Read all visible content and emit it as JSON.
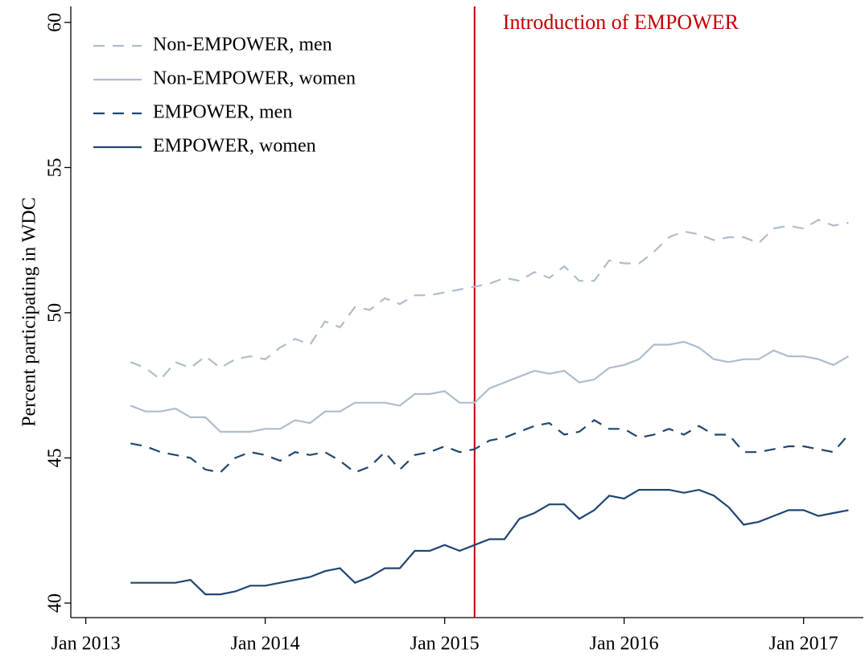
{
  "chart_data": {
    "type": "line",
    "y_label": "Percent participating in WDC",
    "x": [
      "2013-04",
      "2013-05",
      "2013-06",
      "2013-07",
      "2013-08",
      "2013-09",
      "2013-10",
      "2013-11",
      "2013-12",
      "2014-01",
      "2014-02",
      "2014-03",
      "2014-04",
      "2014-05",
      "2014-06",
      "2014-07",
      "2014-08",
      "2014-09",
      "2014-10",
      "2014-11",
      "2014-12",
      "2015-01",
      "2015-02",
      "2015-03",
      "2015-04",
      "2015-05",
      "2015-06",
      "2015-07",
      "2015-08",
      "2015-09",
      "2015-10",
      "2015-11",
      "2015-12",
      "2016-01",
      "2016-02",
      "2016-03",
      "2016-04",
      "2016-05",
      "2016-06",
      "2016-07",
      "2016-08",
      "2016-09",
      "2016-10",
      "2016-11",
      "2016-12",
      "2017-01",
      "2017-02",
      "2017-03",
      "2017-04"
    ],
    "series": [
      {
        "name": "Non-EMPOWER, men",
        "color": "#aebdcc",
        "style": "dashed",
        "values": [
          48.3,
          48.1,
          47.7,
          48.3,
          48.1,
          48.5,
          48.1,
          48.4,
          48.5,
          48.4,
          48.8,
          49.1,
          48.9,
          49.7,
          49.5,
          50.2,
          50.1,
          50.5,
          50.3,
          50.6,
          50.6,
          50.7,
          50.8,
          50.9,
          51.0,
          51.2,
          51.1,
          51.4,
          51.2,
          51.6,
          51.1,
          51.1,
          51.8,
          51.7,
          51.7,
          52.1,
          52.6,
          52.8,
          52.7,
          52.5,
          52.6,
          52.6,
          52.4,
          52.9,
          53.0,
          52.9,
          53.2,
          53.0,
          53.1
        ]
      },
      {
        "name": "Non-EMPOWER, women",
        "color": "#aebdcc",
        "style": "solid",
        "values": [
          46.8,
          46.6,
          46.6,
          46.7,
          46.4,
          46.4,
          45.9,
          45.9,
          45.9,
          46.0,
          46.0,
          46.3,
          46.2,
          46.6,
          46.6,
          46.9,
          46.9,
          46.9,
          46.8,
          47.2,
          47.2,
          47.3,
          46.9,
          46.9,
          47.4,
          47.6,
          47.8,
          48.0,
          47.9,
          48.0,
          47.6,
          47.7,
          48.1,
          48.2,
          48.4,
          48.9,
          48.9,
          49.0,
          48.8,
          48.4,
          48.3,
          48.4,
          48.4,
          48.7,
          48.5,
          48.5,
          48.4,
          48.2,
          48.5
        ]
      },
      {
        "name": "EMPOWER, men",
        "color": "#1f4670",
        "style": "dashed",
        "values": [
          45.5,
          45.4,
          45.2,
          45.1,
          45.0,
          44.6,
          44.5,
          45.0,
          45.2,
          45.1,
          44.9,
          45.2,
          45.1,
          45.2,
          44.9,
          44.5,
          44.7,
          45.2,
          44.6,
          45.1,
          45.2,
          45.4,
          45.2,
          45.3,
          45.6,
          45.7,
          45.9,
          46.1,
          46.2,
          45.8,
          45.9,
          46.3,
          46.0,
          46.0,
          45.7,
          45.8,
          46.0,
          45.8,
          46.1,
          45.8,
          45.8,
          45.2,
          45.2,
          45.3,
          45.4,
          45.4,
          45.3,
          45.2,
          45.8
        ]
      },
      {
        "name": "EMPOWER, women",
        "color": "#1f4670",
        "style": "solid",
        "values": [
          40.7,
          40.7,
          40.7,
          40.7,
          40.8,
          40.3,
          40.3,
          40.4,
          40.6,
          40.6,
          40.7,
          40.8,
          40.9,
          41.1,
          41.2,
          40.7,
          40.9,
          41.2,
          41.2,
          41.8,
          41.8,
          42.0,
          41.8,
          42.0,
          42.2,
          42.2,
          42.9,
          43.1,
          43.4,
          43.4,
          42.9,
          43.2,
          43.7,
          43.6,
          43.9,
          43.9,
          43.9,
          43.8,
          43.9,
          43.7,
          43.3,
          42.7,
          42.8,
          43.0,
          43.2,
          43.2,
          43.0,
          43.1,
          43.2
        ]
      }
    ],
    "xlim": [
      "2012-12",
      "2017-05"
    ],
    "xticks": [
      {
        "value": "2013-01",
        "label": "Jan 2013"
      },
      {
        "value": "2014-01",
        "label": "Jan 2014"
      },
      {
        "value": "2015-01",
        "label": "Jan 2015"
      },
      {
        "value": "2016-01",
        "label": "Jan 2016"
      },
      {
        "value": "2017-01",
        "label": "Jan 2017"
      }
    ],
    "ylim": [
      39.5,
      60.55
    ],
    "yticks": [
      40,
      45,
      50,
      55,
      60
    ],
    "legend": "top-left",
    "vline": {
      "x": "2015-03",
      "label": "Introduction of EMPOWER",
      "color": "#c00000"
    }
  }
}
